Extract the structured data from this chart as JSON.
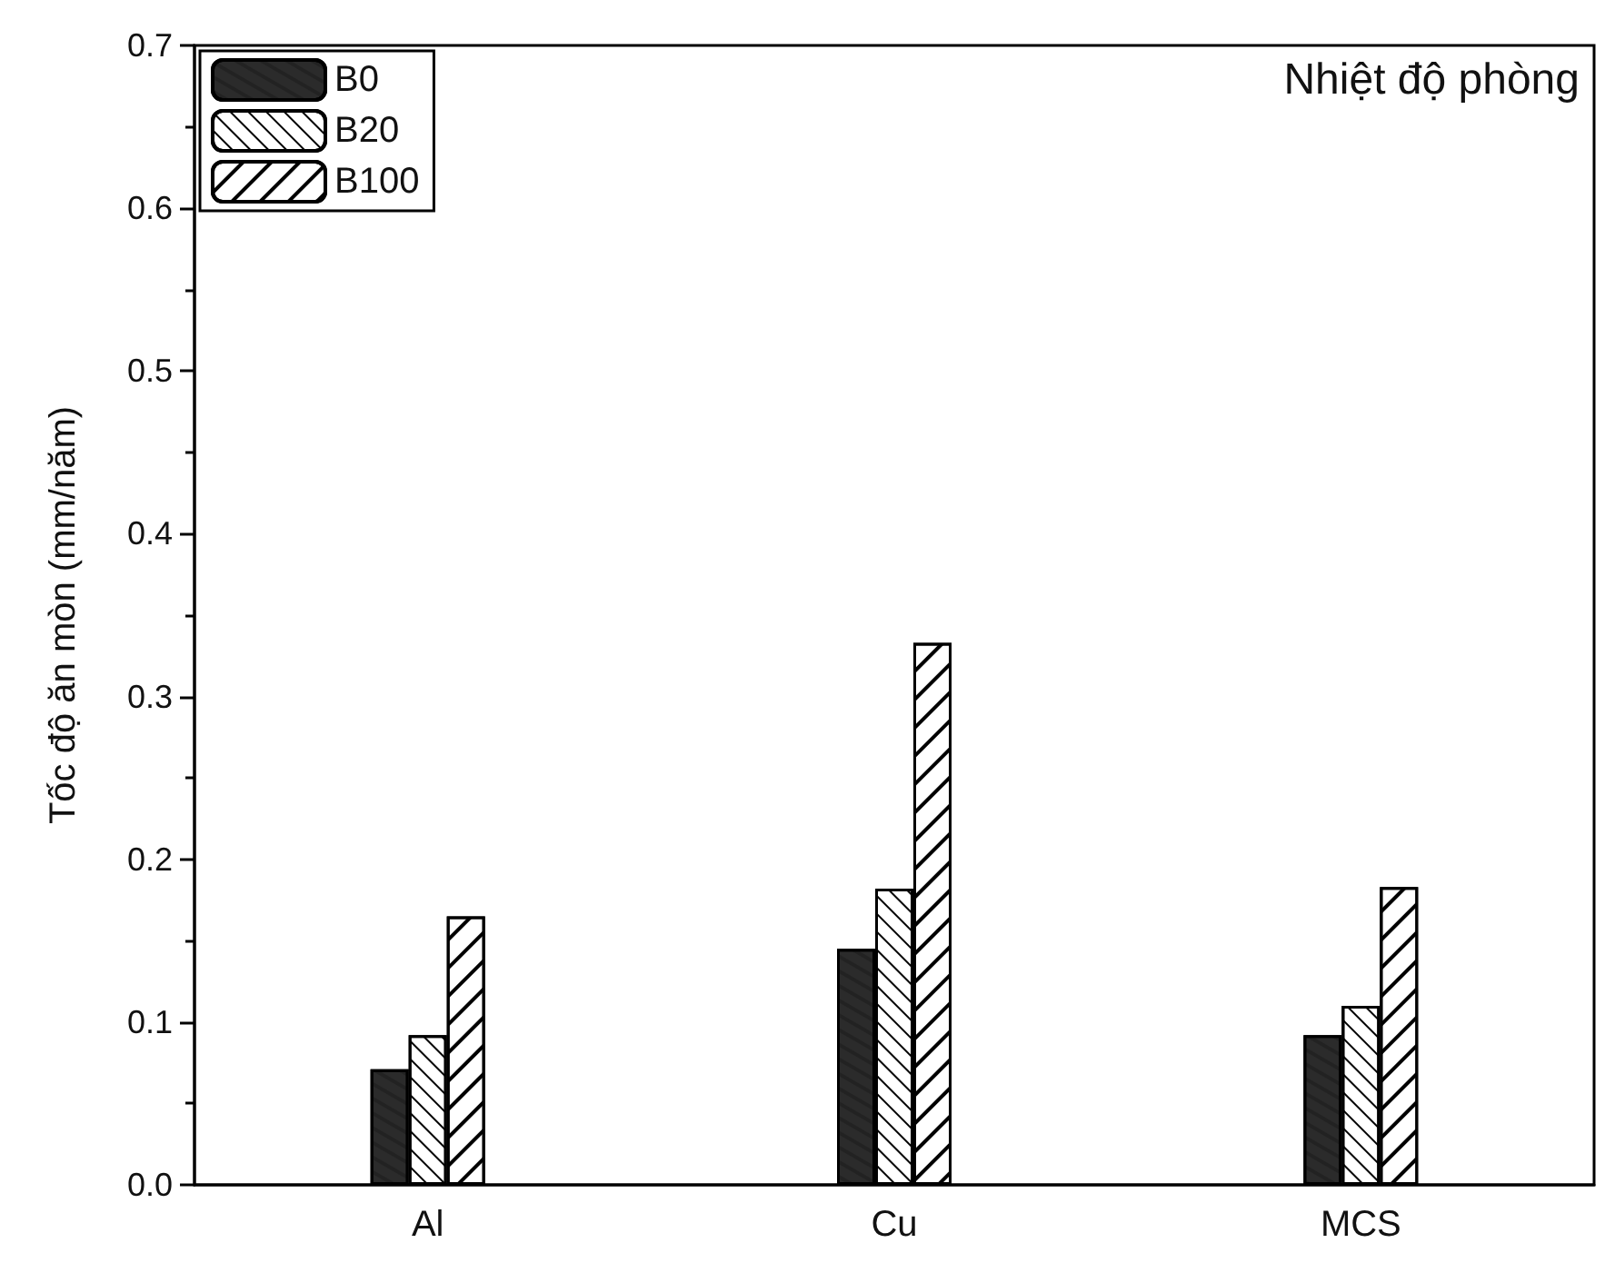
{
  "chart_data": {
    "type": "bar",
    "ylabel": "Tốc độ ăn mòn (mm/năm)",
    "annotations": [
      "Nhiệt độ phòng"
    ],
    "categories": [
      "Al",
      "Cu",
      "MCS"
    ],
    "series": [
      {
        "name": "B0",
        "color": "#2b2b2b",
        "values": [
          0.071,
          0.145,
          0.092
        ]
      },
      {
        "name": "B20",
        "color": "#ffffff",
        "values": [
          0.092,
          0.182,
          0.11
        ]
      },
      {
        "name": "B100",
        "color": "#ffffff",
        "values": [
          0.165,
          0.333,
          0.183
        ]
      }
    ],
    "ylim": [
      0,
      0.7
    ],
    "yticks": [
      {
        "value": 0,
        "label": "0.0"
      },
      0.1,
      0.2,
      0.3,
      0.4,
      0.5,
      0.6,
      0.7
    ],
    "grid": false,
    "legend": "top left"
  }
}
